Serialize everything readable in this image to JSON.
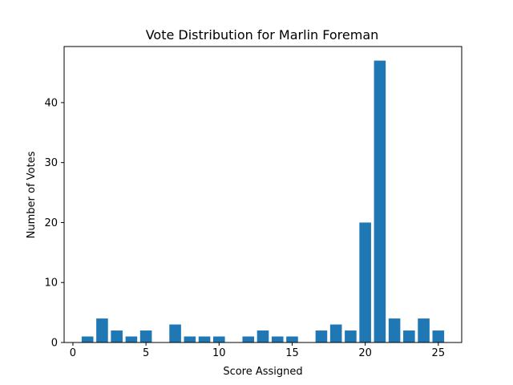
{
  "chart_data": {
    "type": "bar",
    "title": "Vote Distribution for Marlin Foreman",
    "xlabel": "Score Assigned",
    "ylabel": "Number of Votes",
    "x": [
      1,
      2,
      3,
      4,
      5,
      6,
      7,
      8,
      9,
      10,
      11,
      12,
      13,
      14,
      15,
      16,
      17,
      18,
      19,
      20,
      21,
      22,
      23,
      24,
      25
    ],
    "values": [
      1,
      4,
      2,
      1,
      2,
      0,
      3,
      1,
      1,
      1,
      0,
      1,
      2,
      1,
      1,
      0,
      2,
      3,
      2,
      20,
      47,
      4,
      2,
      4,
      2
    ],
    "xlim": [
      -0.6,
      26.6
    ],
    "ylim": [
      0,
      49.35
    ],
    "xticks": [
      0,
      5,
      10,
      15,
      20,
      25
    ],
    "yticks": [
      0,
      10,
      20,
      30,
      40
    ],
    "bar_color": "#1f77b4",
    "grid": false,
    "legend": "none"
  }
}
